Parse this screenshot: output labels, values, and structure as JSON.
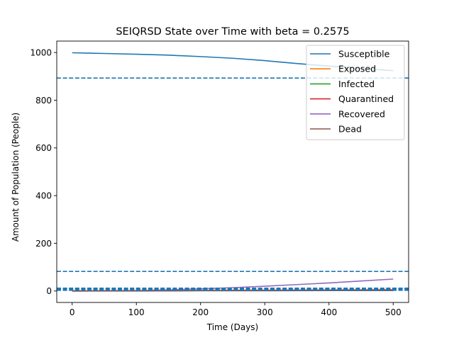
{
  "chart_data": {
    "type": "line",
    "title": "SEIQRSD State over Time with beta = 0.2575",
    "xlabel": "Time (Days)",
    "ylabel": "Amount of Population (People)",
    "xlim": [
      -24,
      524
    ],
    "ylim": [
      -48,
      1048
    ],
    "xticks": [
      0,
      100,
      200,
      300,
      400,
      500
    ],
    "yticks": [
      0,
      200,
      400,
      600,
      800,
      1000
    ],
    "grid": false,
    "legend_position": "top-right",
    "series": [
      {
        "name": "Susceptible",
        "color": "#1f77b4",
        "x": [
          0,
          50,
          100,
          150,
          200,
          250,
          300,
          350,
          400,
          450,
          500
        ],
        "y": [
          999,
          996,
          993,
          989,
          983,
          976,
          966,
          954,
          943,
          933,
          924
        ]
      },
      {
        "name": "Exposed",
        "color": "#ff7f0e",
        "x": [
          0,
          100,
          200,
          300,
          400,
          500
        ],
        "y": [
          0,
          1,
          2,
          3,
          4,
          4
        ]
      },
      {
        "name": "Infected",
        "color": "#2ca02c",
        "x": [
          0,
          100,
          200,
          300,
          400,
          500
        ],
        "y": [
          1,
          1,
          2,
          3,
          4,
          5
        ]
      },
      {
        "name": "Quarantined",
        "color": "#d62728",
        "x": [
          0,
          100,
          200,
          300,
          400,
          500
        ],
        "y": [
          0,
          1,
          2,
          3,
          4,
          5
        ]
      },
      {
        "name": "Recovered",
        "color": "#9467bd",
        "x": [
          0,
          50,
          100,
          150,
          200,
          250,
          300,
          350,
          400,
          450,
          500
        ],
        "y": [
          0,
          1,
          2,
          5,
          9,
          14,
          20,
          27,
          34,
          42,
          50
        ]
      },
      {
        "name": "Dead",
        "color": "#8c564b",
        "x": [
          0,
          100,
          200,
          300,
          400,
          500
        ],
        "y": [
          0,
          0,
          1,
          1,
          2,
          2
        ]
      }
    ],
    "reference_lines": [
      {
        "y": 893,
        "color": "#1f77b4"
      },
      {
        "y": 82,
        "color": "#1f77b4"
      },
      {
        "y": 12,
        "color": "#1f77b4"
      },
      {
        "y": 9,
        "color": "#1f77b4"
      },
      {
        "y": 6,
        "color": "#1f77b4"
      },
      {
        "y": 3,
        "color": "#1f77b4"
      }
    ]
  }
}
